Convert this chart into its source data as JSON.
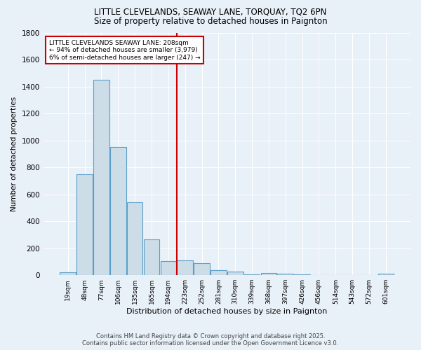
{
  "title1": "LITTLE CLEVELANDS, SEAWAY LANE, TORQUAY, TQ2 6PN",
  "title2": "Size of property relative to detached houses in Paignton",
  "xlabel": "Distribution of detached houses by size in Paignton",
  "ylabel": "Number of detached properties",
  "bar_color": "#ccdde8",
  "bar_edge_color": "#5a9ec8",
  "background_color": "#e8f0f8",
  "grid_color": "#ffffff",
  "categories": [
    "19sqm",
    "48sqm",
    "77sqm",
    "106sqm",
    "135sqm",
    "165sqm",
    "194sqm",
    "223sqm",
    "252sqm",
    "281sqm",
    "310sqm",
    "339sqm",
    "368sqm",
    "397sqm",
    "426sqm",
    "456sqm",
    "514sqm",
    "543sqm",
    "572sqm",
    "601sqm"
  ],
  "values": [
    20,
    750,
    1450,
    950,
    540,
    265,
    105,
    110,
    90,
    35,
    25,
    5,
    15,
    10,
    5,
    3,
    2,
    2,
    2,
    10
  ],
  "vline_x_idx": 6.5,
  "vline_color": "#cc0000",
  "annotation_title": "LITTLE CLEVELANDS SEAWAY LANE: 208sqm",
  "annotation_line1": "← 94% of detached houses are smaller (3,979)",
  "annotation_line2": "6% of semi-detached houses are larger (247) →",
  "annotation_box_color": "#ffffff",
  "annotation_box_edge": "#cc0000",
  "footer1": "Contains HM Land Registry data © Crown copyright and database right 2025.",
  "footer2": "Contains public sector information licensed under the Open Government Licence v3.0.",
  "ylim": [
    0,
    1800
  ],
  "yticks": [
    0,
    200,
    400,
    600,
    800,
    1000,
    1200,
    1400,
    1600,
    1800
  ]
}
